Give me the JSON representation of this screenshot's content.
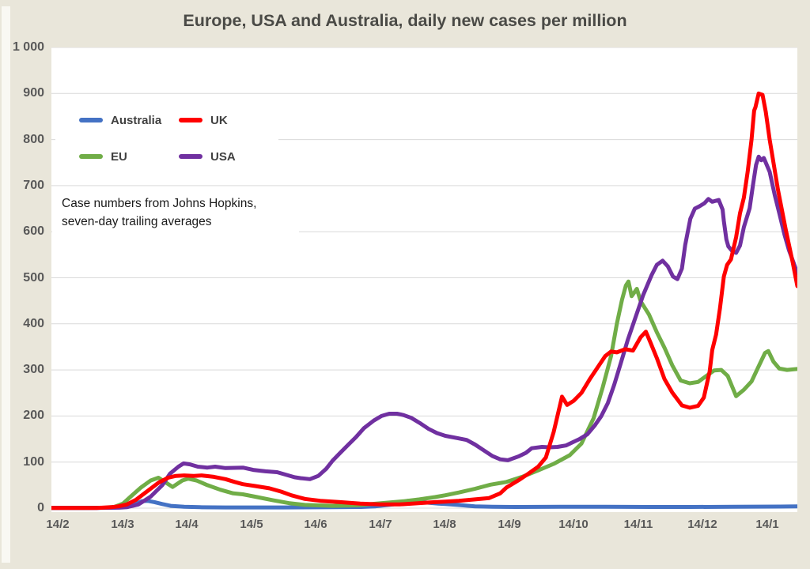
{
  "title": "Europe, USA and Australia, daily new cases per million",
  "annotation": {
    "text": "Case numbers from Johns Hopkins, seven-day trailing averages"
  },
  "colors": {
    "background": "#e9e6da",
    "plot_background": "#ffffff",
    "gridline": "#d9d9d9",
    "tick_text": "#595959",
    "title_text": "#4a4a46",
    "australia": "#4472c4",
    "uk": "#ff0000",
    "eu": "#70ad47",
    "usa": "#7030a0"
  },
  "chart_data": {
    "type": "line",
    "title": "Europe, USA and Australia, daily new cases per million",
    "xlabel": "",
    "ylabel": "",
    "grid": "horizontal",
    "legend_position": "top-left",
    "x_tick_labels": [
      "14/2",
      "14/3",
      "14/4",
      "14/5",
      "14/6",
      "14/7",
      "14/8",
      "14/9",
      "14/10",
      "14/11",
      "14/12",
      "14/1"
    ],
    "y_ticks": [
      0,
      100,
      200,
      300,
      400,
      500,
      600,
      700,
      800,
      900,
      1000
    ],
    "y_tick_labels": [
      "0",
      "100",
      "200",
      "300",
      "400",
      "500",
      "600",
      "700",
      "800",
      "900",
      "1 000"
    ],
    "ylim": [
      0,
      1000
    ],
    "x_range_months": [
      -0.1,
      11.47
    ],
    "series": [
      {
        "name": "Australia",
        "color": "#4472c4",
        "points": [
          [
            -0.1,
            0.5
          ],
          [
            0.5,
            0.5
          ],
          [
            0.8,
            1
          ],
          [
            1.0,
            2
          ],
          [
            1.13,
            5
          ],
          [
            1.22,
            10
          ],
          [
            1.3,
            15
          ],
          [
            1.39,
            16
          ],
          [
            1.5,
            13
          ],
          [
            1.62,
            9
          ],
          [
            1.75,
            5
          ],
          [
            1.96,
            3
          ],
          [
            2.2,
            2
          ],
          [
            2.6,
            1.5
          ],
          [
            3.5,
            1.5
          ],
          [
            4.3,
            2
          ],
          [
            4.7,
            2.5
          ],
          [
            4.93,
            4
          ],
          [
            5.2,
            8
          ],
          [
            5.34,
            13
          ],
          [
            5.43,
            16
          ],
          [
            5.55,
            15
          ],
          [
            5.73,
            12
          ],
          [
            5.9,
            10
          ],
          [
            6.01,
            9
          ],
          [
            6.2,
            7
          ],
          [
            6.47,
            4
          ],
          [
            6.74,
            3
          ],
          [
            7.1,
            2.5
          ],
          [
            7.8,
            3
          ],
          [
            8.5,
            3
          ],
          [
            9.2,
            2.5
          ],
          [
            9.8,
            2.5
          ],
          [
            10.5,
            3
          ],
          [
            11.2,
            3.5
          ],
          [
            11.47,
            4
          ]
        ]
      },
      {
        "name": "UK",
        "color": "#ff0000",
        "points": [
          [
            -0.1,
            0.5
          ],
          [
            0.6,
            0.5
          ],
          [
            0.82,
            2
          ],
          [
            0.94,
            4
          ],
          [
            1.07,
            8
          ],
          [
            1.21,
            18
          ],
          [
            1.37,
            35
          ],
          [
            1.56,
            55
          ],
          [
            1.71,
            66
          ],
          [
            1.83,
            70
          ],
          [
            1.96,
            71
          ],
          [
            2.11,
            70
          ],
          [
            2.23,
            71
          ],
          [
            2.42,
            68
          ],
          [
            2.6,
            63
          ],
          [
            2.74,
            57
          ],
          [
            2.87,
            52
          ],
          [
            3.06,
            48
          ],
          [
            3.28,
            43
          ],
          [
            3.46,
            36
          ],
          [
            3.62,
            28
          ],
          [
            3.83,
            20
          ],
          [
            4.07,
            16
          ],
          [
            4.38,
            13
          ],
          [
            4.69,
            10
          ],
          [
            4.99,
            8
          ],
          [
            5.3,
            8
          ],
          [
            5.61,
            11
          ],
          [
            5.85,
            13
          ],
          [
            6.01,
            14
          ],
          [
            6.22,
            16
          ],
          [
            6.47,
            19
          ],
          [
            6.69,
            22
          ],
          [
            6.86,
            32
          ],
          [
            6.96,
            45
          ],
          [
            7.14,
            60
          ],
          [
            7.3,
            75
          ],
          [
            7.45,
            90
          ],
          [
            7.57,
            110
          ],
          [
            7.69,
            165
          ],
          [
            7.82,
            242
          ],
          [
            7.9,
            224
          ],
          [
            8.0,
            233
          ],
          [
            8.12,
            250
          ],
          [
            8.25,
            280
          ],
          [
            8.37,
            305
          ],
          [
            8.49,
            330
          ],
          [
            8.58,
            340
          ],
          [
            8.67,
            338
          ],
          [
            8.8,
            345
          ],
          [
            8.92,
            342
          ],
          [
            9.04,
            371
          ],
          [
            9.12,
            383
          ],
          [
            9.19,
            360
          ],
          [
            9.29,
            326
          ],
          [
            9.41,
            280
          ],
          [
            9.53,
            251
          ],
          [
            9.68,
            223
          ],
          [
            9.8,
            218
          ],
          [
            9.93,
            222
          ],
          [
            10.02,
            240
          ],
          [
            10.11,
            297
          ],
          [
            10.15,
            343
          ],
          [
            10.21,
            377
          ],
          [
            10.27,
            434
          ],
          [
            10.33,
            503
          ],
          [
            10.38,
            528
          ],
          [
            10.44,
            540
          ],
          [
            10.52,
            588
          ],
          [
            10.58,
            640
          ],
          [
            10.64,
            674
          ],
          [
            10.7,
            730
          ],
          [
            10.76,
            800
          ],
          [
            10.8,
            863
          ],
          [
            10.82,
            870
          ],
          [
            10.87,
            900
          ],
          [
            10.93,
            897
          ],
          [
            10.98,
            860
          ],
          [
            11.04,
            800
          ],
          [
            11.17,
            691
          ],
          [
            11.29,
            605
          ],
          [
            11.4,
            532
          ],
          [
            11.47,
            482
          ]
        ]
      },
      {
        "name": "EU",
        "color": "#70ad47",
        "points": [
          [
            -0.1,
            0.5
          ],
          [
            0.4,
            0.5
          ],
          [
            0.76,
            1
          ],
          [
            0.88,
            3
          ],
          [
            1.01,
            10
          ],
          [
            1.13,
            25
          ],
          [
            1.29,
            45
          ],
          [
            1.44,
            60
          ],
          [
            1.56,
            66
          ],
          [
            1.68,
            55
          ],
          [
            1.78,
            46
          ],
          [
            1.93,
            60
          ],
          [
            2.02,
            64
          ],
          [
            2.15,
            60
          ],
          [
            2.32,
            50
          ],
          [
            2.52,
            40
          ],
          [
            2.72,
            32
          ],
          [
            2.87,
            30
          ],
          [
            3.09,
            24
          ],
          [
            3.34,
            17
          ],
          [
            3.58,
            11
          ],
          [
            3.83,
            7
          ],
          [
            4.26,
            5
          ],
          [
            4.63,
            6
          ],
          [
            4.87,
            9
          ],
          [
            5.12,
            12
          ],
          [
            5.36,
            15
          ],
          [
            5.61,
            19
          ],
          [
            5.85,
            24
          ],
          [
            6.01,
            28
          ],
          [
            6.22,
            34
          ],
          [
            6.47,
            42
          ],
          [
            6.71,
            51
          ],
          [
            6.96,
            57
          ],
          [
            7.2,
            68
          ],
          [
            7.45,
            82
          ],
          [
            7.69,
            96
          ],
          [
            7.94,
            115
          ],
          [
            8.12,
            140
          ],
          [
            8.31,
            195
          ],
          [
            8.45,
            262
          ],
          [
            8.58,
            330
          ],
          [
            8.67,
            400
          ],
          [
            8.75,
            452
          ],
          [
            8.81,
            483
          ],
          [
            8.85,
            492
          ],
          [
            8.9,
            460
          ],
          [
            8.98,
            476
          ],
          [
            9.04,
            449
          ],
          [
            9.17,
            420
          ],
          [
            9.29,
            382
          ],
          [
            9.41,
            348
          ],
          [
            9.53,
            310
          ],
          [
            9.66,
            277
          ],
          [
            9.8,
            271
          ],
          [
            9.93,
            274
          ],
          [
            10.09,
            290
          ],
          [
            10.18,
            299
          ],
          [
            10.29,
            300
          ],
          [
            10.39,
            287
          ],
          [
            10.52,
            243
          ],
          [
            10.64,
            257
          ],
          [
            10.76,
            275
          ],
          [
            10.86,
            305
          ],
          [
            10.97,
            337
          ],
          [
            11.02,
            341
          ],
          [
            11.1,
            318
          ],
          [
            11.19,
            303
          ],
          [
            11.31,
            300
          ],
          [
            11.47,
            302
          ]
        ]
      },
      {
        "name": "USA",
        "color": "#7030a0",
        "points": [
          [
            -0.1,
            0.5
          ],
          [
            0.6,
            0.5
          ],
          [
            0.95,
            1
          ],
          [
            1.07,
            2
          ],
          [
            1.25,
            8
          ],
          [
            1.44,
            25
          ],
          [
            1.62,
            50
          ],
          [
            1.74,
            75
          ],
          [
            1.87,
            90
          ],
          [
            1.95,
            97
          ],
          [
            2.05,
            95
          ],
          [
            2.17,
            90
          ],
          [
            2.32,
            88
          ],
          [
            2.44,
            90
          ],
          [
            2.6,
            87
          ],
          [
            2.87,
            88
          ],
          [
            3.03,
            83
          ],
          [
            3.22,
            80
          ],
          [
            3.4,
            78
          ],
          [
            3.55,
            72
          ],
          [
            3.67,
            67
          ],
          [
            3.77,
            65
          ],
          [
            3.91,
            63
          ],
          [
            4.04,
            70
          ],
          [
            4.16,
            85
          ],
          [
            4.26,
            103
          ],
          [
            4.38,
            120
          ],
          [
            4.5,
            137
          ],
          [
            4.63,
            155
          ],
          [
            4.75,
            174
          ],
          [
            4.9,
            190
          ],
          [
            5.02,
            200
          ],
          [
            5.14,
            205
          ],
          [
            5.26,
            205
          ],
          [
            5.36,
            202
          ],
          [
            5.48,
            196
          ],
          [
            5.61,
            185
          ],
          [
            5.75,
            172
          ],
          [
            5.88,
            163
          ],
          [
            6.01,
            157
          ],
          [
            6.2,
            152
          ],
          [
            6.34,
            148
          ],
          [
            6.47,
            138
          ],
          [
            6.61,
            125
          ],
          [
            6.74,
            113
          ],
          [
            6.86,
            106
          ],
          [
            6.98,
            104
          ],
          [
            7.14,
            112
          ],
          [
            7.26,
            120
          ],
          [
            7.35,
            130
          ],
          [
            7.51,
            133
          ],
          [
            7.63,
            132
          ],
          [
            7.75,
            133
          ],
          [
            7.88,
            136
          ],
          [
            7.97,
            142
          ],
          [
            8.09,
            150
          ],
          [
            8.21,
            160
          ],
          [
            8.33,
            180
          ],
          [
            8.43,
            200
          ],
          [
            8.53,
            228
          ],
          [
            8.63,
            268
          ],
          [
            8.73,
            314
          ],
          [
            8.84,
            365
          ],
          [
            8.96,
            414
          ],
          [
            9.08,
            463
          ],
          [
            9.21,
            506
          ],
          [
            9.29,
            528
          ],
          [
            9.38,
            537
          ],
          [
            9.46,
            525
          ],
          [
            9.54,
            503
          ],
          [
            9.61,
            497
          ],
          [
            9.68,
            520
          ],
          [
            9.73,
            571
          ],
          [
            9.81,
            628
          ],
          [
            9.88,
            650
          ],
          [
            9.95,
            655
          ],
          [
            10.03,
            662
          ],
          [
            10.09,
            671
          ],
          [
            10.15,
            665
          ],
          [
            10.25,
            669
          ],
          [
            10.31,
            648
          ],
          [
            10.33,
            623
          ],
          [
            10.37,
            583
          ],
          [
            10.4,
            568
          ],
          [
            10.46,
            558
          ],
          [
            10.52,
            554
          ],
          [
            10.58,
            570
          ],
          [
            10.64,
            610
          ],
          [
            10.73,
            651
          ],
          [
            10.78,
            700
          ],
          [
            10.83,
            745
          ],
          [
            10.87,
            763
          ],
          [
            10.91,
            755
          ],
          [
            10.95,
            760
          ],
          [
            11.04,
            730
          ],
          [
            11.12,
            679
          ],
          [
            11.19,
            640
          ],
          [
            11.27,
            594
          ],
          [
            11.34,
            560
          ],
          [
            11.4,
            537
          ],
          [
            11.47,
            510
          ]
        ]
      }
    ]
  }
}
